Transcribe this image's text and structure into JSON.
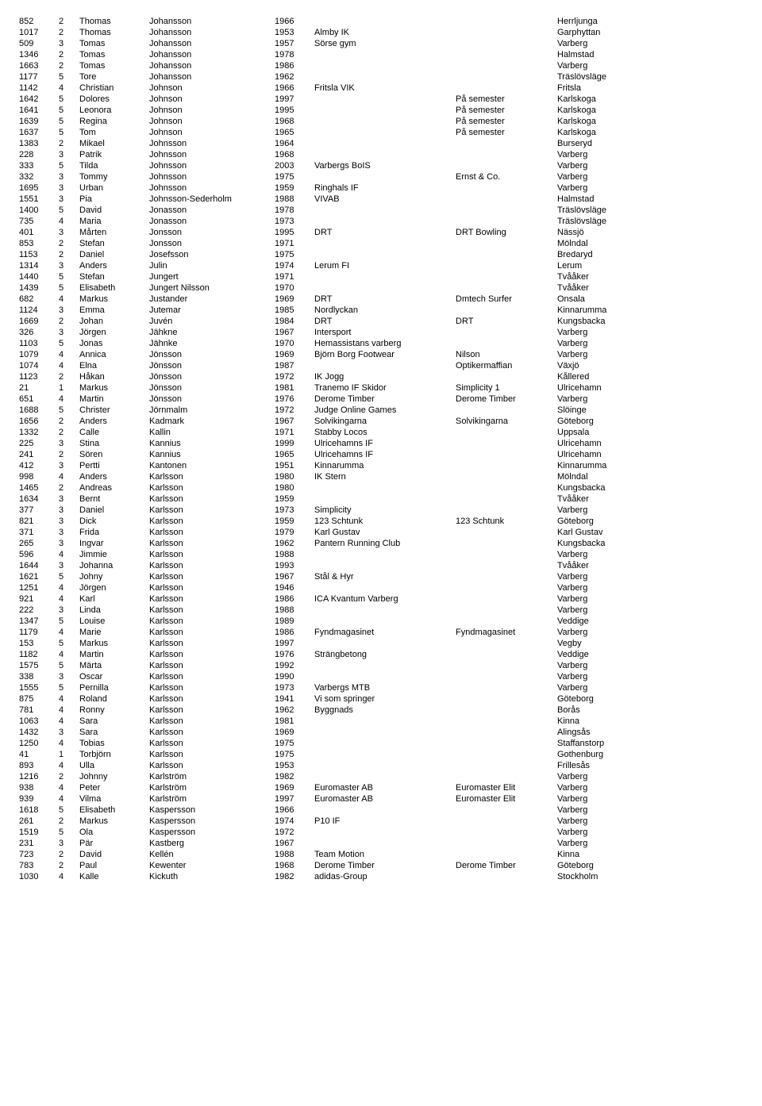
{
  "rows": [
    [
      "852",
      "2",
      "Thomas",
      "Johansson",
      "1966",
      "",
      "",
      "Herrljunga"
    ],
    [
      "1017",
      "2",
      "Thomas",
      "Johansson",
      "1953",
      "Almby IK",
      "",
      "Garphyttan"
    ],
    [
      "509",
      "3",
      "Tomas",
      "Johansson",
      "1957",
      "Sörse gym",
      "",
      "Varberg"
    ],
    [
      "1346",
      "2",
      "Tomas",
      "Johansson",
      "1978",
      "",
      "",
      "Halmstad"
    ],
    [
      "1663",
      "2",
      "Tomas",
      "Johansson",
      "1986",
      "",
      "",
      "Varberg"
    ],
    [
      "1177",
      "5",
      "Tore",
      "Johansson",
      "1962",
      "",
      "",
      "Träslövsläge"
    ],
    [
      "1142",
      "4",
      "Christian",
      "Johnson",
      "1966",
      "Fritsla VIK",
      "",
      "Fritsla"
    ],
    [
      "1642",
      "5",
      "Dolores",
      "Johnson",
      "1997",
      "",
      "På semester",
      "Karlskoga"
    ],
    [
      "1641",
      "5",
      "Leonora",
      "Johnson",
      "1995",
      "",
      "På semester",
      "Karlskoga"
    ],
    [
      "1639",
      "5",
      "Regina",
      "Johnson",
      "1968",
      "",
      "På semester",
      "Karlskoga"
    ],
    [
      "1637",
      "5",
      "Tom",
      "Johnson",
      "1965",
      "",
      "På semester",
      "Karlskoga"
    ],
    [
      "1383",
      "2",
      "Mikael",
      "Johnsson",
      "1964",
      "",
      "",
      "Burseryd"
    ],
    [
      "228",
      "3",
      "Patrik",
      "Johnsson",
      "1968",
      "",
      "",
      "Varberg"
    ],
    [
      "333",
      "5",
      "Tilda",
      "Johnsson",
      "2003",
      "Varbergs BoIS",
      "",
      "Varberg"
    ],
    [
      "332",
      "3",
      "Tommy",
      "Johnsson",
      "1975",
      "",
      "Ernst & Co.",
      "Varberg"
    ],
    [
      "1695",
      "3",
      "Urban",
      "Johnsson",
      "1959",
      "Ringhals IF",
      "",
      "Varberg"
    ],
    [
      "1551",
      "3",
      "Pia",
      "Johnsson-Sederholm",
      "1988",
      "VIVAB",
      "",
      "Halmstad"
    ],
    [
      "1400",
      "5",
      "David",
      "Jonasson",
      "1978",
      "",
      "",
      "Träslövsläge"
    ],
    [
      "735",
      "4",
      "Maria",
      "Jonasson",
      "1973",
      "",
      "",
      "Träslövsläge"
    ],
    [
      "401",
      "3",
      "Mårten",
      "Jonsson",
      "1995",
      "DRT",
      "DRT Bowling",
      "Nässjö"
    ],
    [
      "853",
      "2",
      "Stefan",
      "Jonsson",
      "1971",
      "",
      "",
      "Mölndal"
    ],
    [
      "1153",
      "2",
      "Daniel",
      "Josefsson",
      "1975",
      "",
      "",
      "Bredaryd"
    ],
    [
      "1314",
      "3",
      "Anders",
      "Julin",
      "1974",
      "Lerum FI",
      "",
      "Lerum"
    ],
    [
      "1440",
      "5",
      "Stefan",
      "Jungert",
      "1971",
      "",
      "",
      "Tvååker"
    ],
    [
      "1439",
      "5",
      "Elisabeth",
      "Jungert Nilsson",
      "1970",
      "",
      "",
      "Tvååker"
    ],
    [
      "682",
      "4",
      "Markus",
      "Justander",
      "1969",
      "DRT",
      "Dmtech Surfer",
      "Onsala"
    ],
    [
      "1124",
      "3",
      "Emma",
      "Jutemar",
      "1985",
      "Nordlyckan",
      "",
      "Kinnarumma"
    ],
    [
      "1669",
      "2",
      "Johan",
      "Juvén",
      "1984",
      "DRT",
      "DRT",
      "Kungsbacka"
    ],
    [
      "326",
      "3",
      "Jörgen",
      "Jähkne",
      "1967",
      "Intersport",
      "",
      "Varberg"
    ],
    [
      "1103",
      "5",
      "Jonas",
      "Jähnke",
      "1970",
      "Hemassistans varberg",
      "",
      "Varberg"
    ],
    [
      "1079",
      "4",
      "Annica",
      "Jönsson",
      "1969",
      "Björn Borg Footwear",
      "Nilson",
      "Varberg"
    ],
    [
      "1074",
      "4",
      "Elna",
      "Jönsson",
      "1987",
      "",
      "Optikermaffian",
      "Växjö"
    ],
    [
      "1123",
      "2",
      "Håkan",
      "Jönsson",
      "1972",
      "IK Jogg",
      "",
      "Kållered"
    ],
    [
      "21",
      "1",
      "Markus",
      "Jönsson",
      "1981",
      "Tranemo IF Skidor",
      "Simplicity 1",
      "Ulricehamn"
    ],
    [
      "651",
      "4",
      "Martin",
      "Jönsson",
      "1976",
      "Derome Timber",
      "Derome Timber",
      "Varberg"
    ],
    [
      "1688",
      "5",
      "Christer",
      "Jörnmalm",
      "1972",
      "Judge  Online Games",
      "",
      "Slöinge"
    ],
    [
      "1656",
      "2",
      "Anders",
      "Kadmark",
      "1967",
      "Solvikingarna",
      "Solvikingarna",
      "Göteborg"
    ],
    [
      "1332",
      "2",
      "Calle",
      "Kallin",
      "1971",
      "Stabby Locos",
      "",
      "Uppsala"
    ],
    [
      "225",
      "3",
      "Stina",
      "Kannius",
      "1999",
      "Ulricehamns IF",
      "",
      "Ulricehamn"
    ],
    [
      "241",
      "2",
      "Sören",
      "Kannius",
      "1965",
      "Ulricehamns IF",
      "",
      "Ulricehamn"
    ],
    [
      "412",
      "3",
      "Pertti",
      "Kantonen",
      "1951",
      "Kinnarumma",
      "",
      "Kinnarumma"
    ],
    [
      "998",
      "4",
      "Anders",
      "Karlsson",
      "1980",
      "IK Stern",
      "",
      "Mölndal"
    ],
    [
      "1465",
      "2",
      "Andreas",
      "Karlsson",
      "1980",
      "",
      "",
      "Kungsbacka"
    ],
    [
      "1634",
      "3",
      "Bernt",
      "Karlsson",
      "1959",
      "",
      "",
      "Tvååker"
    ],
    [
      "377",
      "3",
      "Daniel",
      "Karlsson",
      "1973",
      "Simplicity",
      "",
      "Varberg"
    ],
    [
      "821",
      "3",
      "Dick",
      "Karlsson",
      "1959",
      "123 Schtunk",
      "123 Schtunk",
      "Göteborg"
    ],
    [
      "371",
      "3",
      "Frida",
      "Karlsson",
      "1979",
      "Karl Gustav",
      "",
      "Karl Gustav"
    ],
    [
      "265",
      "3",
      "Ingvar",
      "Karlsson",
      "1962",
      "Pantern Running Club",
      "",
      "Kungsbacka"
    ],
    [
      "596",
      "4",
      "Jimmie",
      "Karlsson",
      "1988",
      "",
      "",
      "Varberg"
    ],
    [
      "1644",
      "3",
      "Johanna",
      "Karlsson",
      "1993",
      "",
      "",
      "Tvååker"
    ],
    [
      "1621",
      "5",
      "Johny",
      "Karlsson",
      "1967",
      "Stål & Hyr",
      "",
      "Varberg"
    ],
    [
      "1251",
      "4",
      "Jörgen",
      "Karlsson",
      "1946",
      "",
      "",
      "Varberg"
    ],
    [
      "921",
      "4",
      "Karl",
      "Karlsson",
      "1986",
      "ICA Kvantum Varberg",
      "",
      "Varberg"
    ],
    [
      "222",
      "3",
      "Linda",
      "Karlsson",
      "1988",
      "",
      "",
      "Varberg"
    ],
    [
      "1347",
      "5",
      "Louise",
      "Karlsson",
      "1989",
      "",
      "",
      "Veddige"
    ],
    [
      "1179",
      "4",
      "Marie",
      "Karlsson",
      "1986",
      "Fyndmagasinet",
      "Fyndmagasinet",
      "Varberg"
    ],
    [
      "153",
      "5",
      "Markus",
      "Karlsson",
      "1997",
      "",
      "",
      "Vegby"
    ],
    [
      "1182",
      "4",
      "Martin",
      "Karlsson",
      "1976",
      "Strängbetong",
      "",
      "Veddige"
    ],
    [
      "1575",
      "5",
      "Märta",
      "Karlsson",
      "1992",
      "",
      "",
      "Varberg"
    ],
    [
      "338",
      "3",
      "Oscar",
      "Karlsson",
      "1990",
      "",
      "",
      "Varberg"
    ],
    [
      "1555",
      "5",
      "Pernilla",
      "Karlsson",
      "1973",
      "Varbergs MTB",
      "",
      "Varberg"
    ],
    [
      "875",
      "4",
      "Roland",
      "Karlsson",
      "1941",
      "Vi som springer",
      "",
      "Göteborg"
    ],
    [
      "781",
      "4",
      "Ronny",
      "Karlsson",
      "1962",
      "Byggnads",
      "",
      "Borås"
    ],
    [
      "1063",
      "4",
      "Sara",
      "Karlsson",
      "1981",
      "",
      "",
      "Kinna"
    ],
    [
      "1432",
      "3",
      "Sara",
      "Karlsson",
      "1969",
      "",
      "",
      "Alingsås"
    ],
    [
      "1250",
      "4",
      "Tobias",
      "Karlsson",
      "1975",
      "",
      "",
      "Staffanstorp"
    ],
    [
      "41",
      "1",
      "Torbjörn",
      "Karlsson",
      "1975",
      "",
      "",
      "Gothenburg"
    ],
    [
      "893",
      "4",
      "Ulla",
      "Karlsson",
      "1953",
      "",
      "",
      "Frillesås"
    ],
    [
      "1216",
      "2",
      "Johnny",
      "Karlström",
      "1982",
      "",
      "",
      "Varberg"
    ],
    [
      "938",
      "4",
      "Peter",
      "Karlström",
      "1969",
      "Euromaster AB",
      "Euromaster Elit",
      "Varberg"
    ],
    [
      "939",
      "4",
      "Vilma",
      "Karlström",
      "1997",
      "Euromaster AB",
      "Euromaster Elit",
      "Varberg"
    ],
    [
      "1618",
      "5",
      "Elisabeth",
      "Kaspersson",
      "1966",
      "",
      "",
      "Varberg"
    ],
    [
      "261",
      "2",
      "Markus",
      "Kaspersson",
      "1974",
      "P10 IF",
      "",
      "Varberg"
    ],
    [
      "1519",
      "5",
      "Ola",
      "Kaspersson",
      "1972",
      "",
      "",
      "Varberg"
    ],
    [
      "231",
      "3",
      "Pär",
      "Kastberg",
      "1967",
      "",
      "",
      "Varberg"
    ],
    [
      "723",
      "2",
      "David",
      "Kellén",
      "1988",
      "Team Motion",
      "",
      "Kinna"
    ],
    [
      "783",
      "2",
      "Paul",
      "Kewenter",
      "1968",
      "Derome Timber",
      "Derome Timber",
      "Göteborg"
    ],
    [
      "1030",
      "4",
      "Kalle",
      "Kickuth",
      "1982",
      "adidas-Group",
      "",
      "Stockholm"
    ]
  ]
}
